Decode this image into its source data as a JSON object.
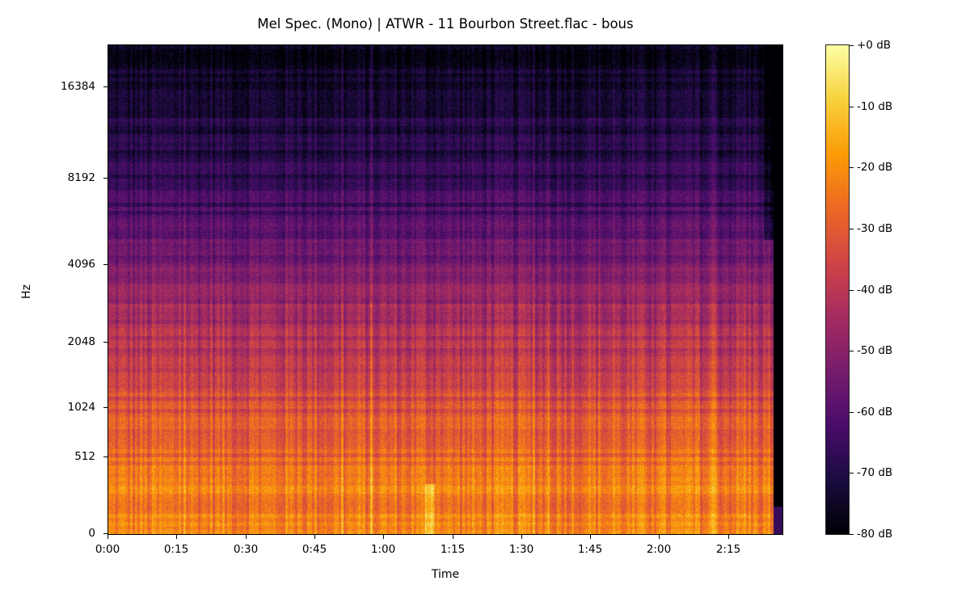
{
  "chart_data": {
    "type": "heatmap",
    "subtype": "mel-spectrogram",
    "title": "Mel Spec. (Mono) | ATWR - 11 Bourbon Street.flac - bous",
    "xlabel": "Time",
    "ylabel": "Hz",
    "x_ticks": [
      {
        "label": "0:00",
        "seconds": 0
      },
      {
        "label": "0:15",
        "seconds": 15
      },
      {
        "label": "0:30",
        "seconds": 30
      },
      {
        "label": "0:45",
        "seconds": 45
      },
      {
        "label": "1:00",
        "seconds": 60
      },
      {
        "label": "1:15",
        "seconds": 75
      },
      {
        "label": "1:30",
        "seconds": 90
      },
      {
        "label": "1:45",
        "seconds": 105
      },
      {
        "label": "2:00",
        "seconds": 120
      },
      {
        "label": "2:15",
        "seconds": 135
      }
    ],
    "x_range_seconds": [
      0,
      147
    ],
    "signal_end_seconds": 145,
    "y_ticks": [
      {
        "label": "16384",
        "hz": 16384
      },
      {
        "label": "8192",
        "hz": 8192
      },
      {
        "label": "4096",
        "hz": 4096
      },
      {
        "label": "2048",
        "hz": 2048
      },
      {
        "label": "1024",
        "hz": 1024
      },
      {
        "label": "512",
        "hz": 512
      },
      {
        "label": "0",
        "hz": 0
      }
    ],
    "y_scale": "mel",
    "y_range_hz": [
      0,
      22050
    ],
    "colorbar": {
      "colormap": "inferno",
      "format": "%+2.0f dB",
      "range_db": [
        -80,
        0
      ],
      "ticks": [
        "+0 dB",
        "-10 dB",
        "-20 dB",
        "-30 dB",
        "-40 dB",
        "-50 dB",
        "-60 dB",
        "-70 dB",
        "-80 dB"
      ]
    },
    "energy_profile_db_by_freq": [
      {
        "hz": 0,
        "db_mean": -22
      },
      {
        "hz": 250,
        "db_mean": -24
      },
      {
        "hz": 512,
        "db_mean": -28
      },
      {
        "hz": 1024,
        "db_mean": -33
      },
      {
        "hz": 2048,
        "db_mean": -42
      },
      {
        "hz": 4096,
        "db_mean": -55
      },
      {
        "hz": 6000,
        "db_mean": -62
      },
      {
        "hz": 8192,
        "db_mean": -68
      },
      {
        "hz": 16384,
        "db_mean": -74
      },
      {
        "hz": 22050,
        "db_mean": -78
      }
    ],
    "annotations": [
      "Loud low-frequency transient near 1:10",
      "Signal fades to silence after ~2:25"
    ],
    "grid": false,
    "legend": "colorbar right"
  },
  "colors": {
    "inferno_stops": [
      "#000004",
      "#1b0c41",
      "#4a0c6b",
      "#781c6d",
      "#a52c60",
      "#cf4446",
      "#ed6925",
      "#fb9b06",
      "#f7d13d",
      "#fcffa4"
    ]
  }
}
